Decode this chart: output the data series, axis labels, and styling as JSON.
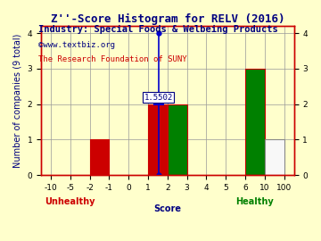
{
  "title": "Z''-Score Histogram for RELV (2016)",
  "subtitle": "Industry: Special Foods & Welbeing Products",
  "watermark1": "©www.textbiz.org",
  "watermark2": "The Research Foundation of SUNY",
  "xlabel": "Score",
  "ylabel": "Number of companies (9 total)",
  "unhealthy_label": "Unhealthy",
  "healthy_label": "Healthy",
  "marker_value": 1.5502,
  "marker_label": "1.5502",
  "bars": [
    {
      "x_left": -2,
      "x_right": -1,
      "height": 1,
      "color": "#cc0000"
    },
    {
      "x_left": 1,
      "x_right": 2,
      "height": 2,
      "color": "#cc0000"
    },
    {
      "x_left": 2,
      "x_right": 3,
      "height": 2,
      "color": "#008000"
    },
    {
      "x_left": 6,
      "x_right": 10,
      "height": 3,
      "color": "#008000"
    },
    {
      "x_left": 10,
      "x_right": 100,
      "height": 1,
      "color": "#f8f8f8"
    }
  ],
  "xtick_labels": [
    "-10",
    "-5",
    "-2",
    "-1",
    "0",
    "1",
    "2",
    "3",
    "4",
    "5",
    "6",
    "10",
    "100"
  ],
  "xtick_values": [
    -10,
    -5,
    -2,
    -1,
    0,
    1,
    2,
    3,
    4,
    5,
    6,
    10,
    100
  ],
  "yticks": [
    0,
    1,
    2,
    3,
    4
  ],
  "ylim": [
    0,
    4.2
  ],
  "background_color": "#ffffcc",
  "grid_color": "#999999",
  "title_color": "#000080",
  "subtitle_color": "#000080",
  "watermark1_color": "#000080",
  "watermark2_color": "#cc0000",
  "xlabel_color": "#000080",
  "ylabel_color": "#000080",
  "unhealthy_color": "#cc0000",
  "healthy_color": "#008000",
  "marker_line_color": "#0000cc",
  "marker_dot_color": "#0000cc",
  "marker_label_color": "#000080",
  "marker_label_bg": "#ffffff",
  "axis_edge_color": "#cc0000",
  "title_fontsize": 9,
  "subtitle_fontsize": 7.5,
  "watermark_fontsize": 6.5,
  "tick_fontsize": 6.5,
  "label_fontsize": 7,
  "marker_fontsize": 6.5
}
